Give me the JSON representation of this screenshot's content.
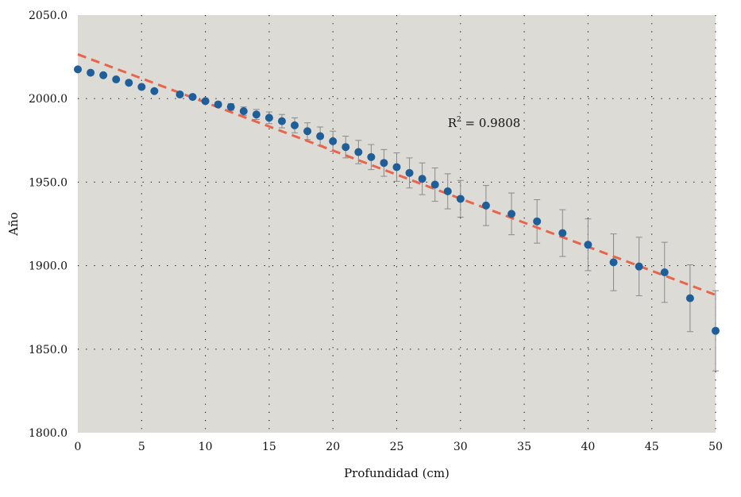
{
  "chart_data": {
    "type": "scatter",
    "title": "",
    "xlabel": "Profundidad (cm)",
    "ylabel": "Año",
    "xlim": [
      0,
      50
    ],
    "ylim": [
      1800,
      2050
    ],
    "xticks": [
      0,
      5,
      10,
      15,
      20,
      25,
      30,
      35,
      40,
      45,
      50
    ],
    "yticks": [
      1800,
      1850,
      1900,
      1950,
      2000,
      2050
    ],
    "xtick_labels": [
      "0",
      "5",
      "10",
      "15",
      "20",
      "25",
      "30",
      "35",
      "40",
      "45",
      "50"
    ],
    "ytick_labels": [
      "1800.0",
      "1850.0",
      "1900.0",
      "1950.0",
      "2000.0",
      "2050.0"
    ],
    "grid": true,
    "background_color": "#dcdbd6",
    "point_color": "#1f5f99",
    "fit_color": "#e8644a",
    "errorbar_color": "#8a8a8a",
    "points": [
      {
        "x": 0,
        "y": 2017.5,
        "err": 0
      },
      {
        "x": 1,
        "y": 2015.5,
        "err": 0
      },
      {
        "x": 2,
        "y": 2014,
        "err": 0
      },
      {
        "x": 3,
        "y": 2011.5,
        "err": 0
      },
      {
        "x": 4,
        "y": 2009.5,
        "err": 0
      },
      {
        "x": 5,
        "y": 2007,
        "err": 0
      },
      {
        "x": 6,
        "y": 2004.5,
        "err": 0
      },
      {
        "x": 8,
        "y": 2002.5,
        "err": 0
      },
      {
        "x": 9,
        "y": 2001,
        "err": 0
      },
      {
        "x": 10,
        "y": 1998.5,
        "err": 1
      },
      {
        "x": 11,
        "y": 1996.5,
        "err": 1.5
      },
      {
        "x": 12,
        "y": 1995,
        "err": 2
      },
      {
        "x": 13,
        "y": 1992.5,
        "err": 2.5
      },
      {
        "x": 14,
        "y": 1990.5,
        "err": 3
      },
      {
        "x": 15,
        "y": 1988.5,
        "err": 3.5
      },
      {
        "x": 16,
        "y": 1986.5,
        "err": 4
      },
      {
        "x": 17,
        "y": 1984,
        "err": 4.5
      },
      {
        "x": 18,
        "y": 1980.5,
        "err": 5
      },
      {
        "x": 19,
        "y": 1977.5,
        "err": 5.5
      },
      {
        "x": 20,
        "y": 1974.5,
        "err": 6
      },
      {
        "x": 21,
        "y": 1971,
        "err": 6.5
      },
      {
        "x": 22,
        "y": 1968,
        "err": 7
      },
      {
        "x": 23,
        "y": 1965,
        "err": 7.5
      },
      {
        "x": 24,
        "y": 1961.5,
        "err": 8
      },
      {
        "x": 25,
        "y": 1959,
        "err": 8.5
      },
      {
        "x": 26,
        "y": 1955.5,
        "err": 9
      },
      {
        "x": 27,
        "y": 1952,
        "err": 9.5
      },
      {
        "x": 28,
        "y": 1948.5,
        "err": 10
      },
      {
        "x": 29,
        "y": 1944.5,
        "err": 10.5
      },
      {
        "x": 30,
        "y": 1940,
        "err": 11
      },
      {
        "x": 32,
        "y": 1936,
        "err": 12
      },
      {
        "x": 34,
        "y": 1931,
        "err": 12.5
      },
      {
        "x": 36,
        "y": 1926.5,
        "err": 13
      },
      {
        "x": 38,
        "y": 1919.5,
        "err": 14
      },
      {
        "x": 40,
        "y": 1912.5,
        "err": 15.5
      },
      {
        "x": 42,
        "y": 1902,
        "err": 17
      },
      {
        "x": 44,
        "y": 1899.5,
        "err": 17.5
      },
      {
        "x": 46,
        "y": 1896,
        "err": 18
      },
      {
        "x": 48,
        "y": 1880.5,
        "err": 20
      },
      {
        "x": 50,
        "y": 1861,
        "err": 24
      }
    ],
    "fit_line": {
      "style": "dashed",
      "x": [
        0,
        50
      ],
      "y": [
        2026.5,
        1882.5
      ]
    },
    "annotation": {
      "text_base": "R",
      "text_sup": "2",
      "text_rest": " = 0.9808",
      "x": 29,
      "y": 1983
    }
  }
}
